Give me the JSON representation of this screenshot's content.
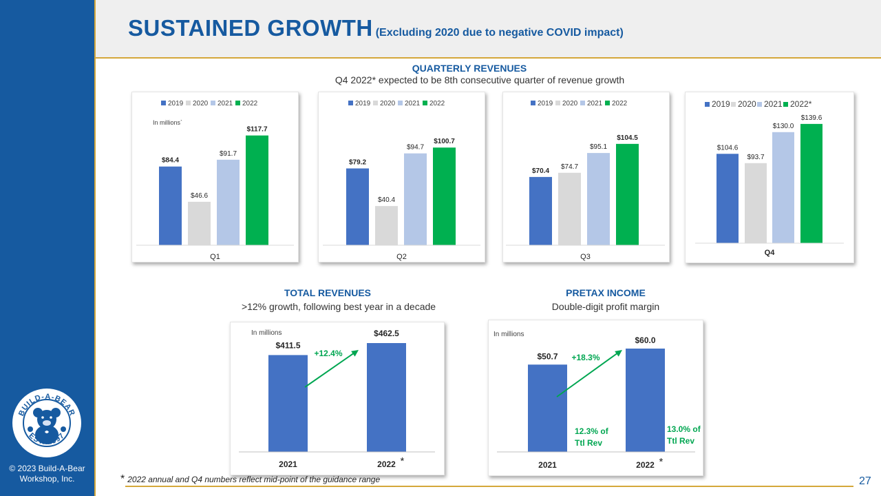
{
  "title": {
    "main": "SUSTAINED GROWTH",
    "sub": "(Excluding 2020 due to negative COVID impact)"
  },
  "quarterly": {
    "title": "QUARTERLY REVENUES",
    "subtitle": "Q4 2022* expected  to be 8th consecutive quarter of revenue growth"
  },
  "total": {
    "title": "TOTAL REVENUES",
    "subtitle": ">12% growth, following best year in a decade"
  },
  "pretax": {
    "title": "PRETAX INCOME",
    "subtitle": "Double-digit profit margin"
  },
  "footnote": {
    "star": "*",
    "text": "2022  annual and Q4 numbers reflect mid-point of the guidance range"
  },
  "page_number": "27",
  "copyright": "© 2023 Build-A-Bear Workshop, Inc.",
  "logo": {
    "top_text": "BUILD-A-BEAR",
    "bottom_text": "EST. 1997"
  },
  "colors": {
    "brand_blue": "#165aa0",
    "gold_rule": "#d4a73a",
    "bar_2019": "#4472c4",
    "bar_2020": "#d9d9d9",
    "bar_2021": "#b4c7e7",
    "bar_2022": "#00b050",
    "growth_green": "#00a651"
  },
  "chart_data": [
    {
      "type": "bar",
      "categories": [
        "Q1"
      ],
      "series": [
        {
          "name": "2019",
          "values": [
            84.4
          ]
        },
        {
          "name": "2020",
          "values": [
            46.6
          ]
        },
        {
          "name": "2021",
          "values": [
            91.7
          ]
        },
        {
          "name": "2022",
          "values": [
            117.7
          ]
        }
      ],
      "data_labels": [
        "$84.4",
        "$46.6",
        "$91.7",
        "$117.7"
      ],
      "bold_labels": [
        true,
        false,
        false,
        true
      ],
      "annotation": "In millions`",
      "legend": "top",
      "ylim": [
        0,
        130
      ]
    },
    {
      "type": "bar",
      "categories": [
        "Q2"
      ],
      "series": [
        {
          "name": "2019",
          "values": [
            79.2
          ]
        },
        {
          "name": "2020",
          "values": [
            40.4
          ]
        },
        {
          "name": "2021",
          "values": [
            94.7
          ]
        },
        {
          "name": "2022",
          "values": [
            100.7
          ]
        }
      ],
      "data_labels": [
        "$79.2",
        "$40.4",
        "$94.7",
        "$100.7"
      ],
      "bold_labels": [
        true,
        false,
        false,
        true
      ],
      "legend": "top",
      "ylim": [
        0,
        125
      ]
    },
    {
      "type": "bar",
      "categories": [
        "Q3"
      ],
      "series": [
        {
          "name": "2019",
          "values": [
            70.4
          ]
        },
        {
          "name": "2020",
          "values": [
            74.7
          ]
        },
        {
          "name": "2021",
          "values": [
            95.1
          ]
        },
        {
          "name": "2022",
          "values": [
            104.5
          ]
        }
      ],
      "data_labels": [
        "$70.4",
        "$74.7",
        "$95.1",
        "$104.5"
      ],
      "bold_labels": [
        true,
        false,
        false,
        true
      ],
      "legend": "top",
      "ylim": [
        0,
        125
      ]
    },
    {
      "type": "bar",
      "categories": [
        "Q4"
      ],
      "series": [
        {
          "name": "2019",
          "values": [
            104.6
          ]
        },
        {
          "name": "2020",
          "values": [
            93.7
          ]
        },
        {
          "name": "2021",
          "values": [
            130.0
          ]
        },
        {
          "name": "2022*",
          "values": [
            139.6
          ]
        }
      ],
      "data_labels": [
        "$104.6",
        "$93.7",
        "$130.0",
        "$139.6"
      ],
      "bold_labels": [
        false,
        false,
        false,
        false
      ],
      "legend": "top",
      "ylim": [
        0,
        150
      ]
    },
    {
      "type": "bar",
      "categories": [
        "2021",
        "2022"
      ],
      "category_marks": [
        "",
        "*"
      ],
      "values": [
        411.5,
        462.5
      ],
      "data_labels": [
        "$411.5",
        "$462.5"
      ],
      "annotation": "In millions",
      "growth_label": "+12.4%",
      "ylim": [
        0,
        462.5
      ]
    },
    {
      "type": "bar",
      "categories": [
        "2021",
        "2022"
      ],
      "category_marks": [
        "",
        "*"
      ],
      "values": [
        50.7,
        60.0
      ],
      "data_labels": [
        "$50.7",
        "$60.0"
      ],
      "annotation": "In millions",
      "growth_label": "+18.3%",
      "margin_labels": [
        [
          "12.3% of",
          "Ttl Rev"
        ],
        [
          "13.0% of",
          "Ttl Rev"
        ]
      ],
      "ylim": [
        0,
        60
      ]
    }
  ]
}
